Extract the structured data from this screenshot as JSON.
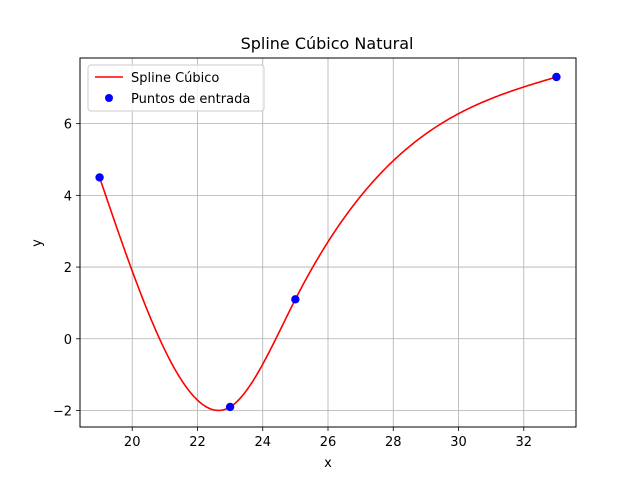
{
  "chart_data": {
    "type": "line",
    "title": "Spline Cúbico Natural",
    "xlabel": "x",
    "ylabel": "y",
    "xlim": [
      18.4,
      33.6
    ],
    "ylim": [
      -2.46,
      7.83
    ],
    "xticks": [
      20,
      22,
      24,
      26,
      28,
      30,
      32
    ],
    "yticks": [
      -2,
      0,
      2,
      4,
      6
    ],
    "grid": true,
    "legend_position": "top-left",
    "series": [
      {
        "name": "Spline Cúbico",
        "kind": "line",
        "color": "#ff0000",
        "source_points": {
          "x": [
            19,
            23,
            25,
            33
          ],
          "y": [
            4.5,
            -1.9,
            1.1,
            7.3
          ]
        },
        "interpolation": "natural-cubic-spline"
      },
      {
        "name": "Puntos de entrada",
        "kind": "marker",
        "color": "#0000ff",
        "x": [
          19,
          23,
          25,
          33
        ],
        "y": [
          4.5,
          -1.9,
          1.1,
          7.3
        ]
      }
    ]
  }
}
